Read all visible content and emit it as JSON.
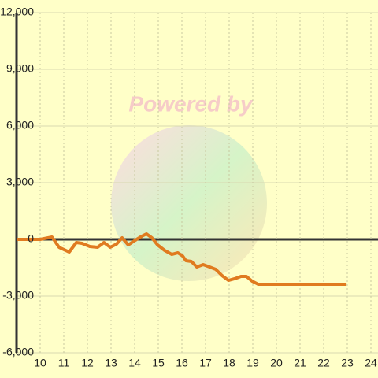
{
  "chart_data": {
    "type": "line",
    "watermark": "Powered by",
    "x": [
      9,
      10,
      10.5,
      10.8,
      11.23,
      11.53,
      11.77,
      12.1,
      12.43,
      12.7,
      12.97,
      13.23,
      13.47,
      13.73,
      14.03,
      14.3,
      14.5,
      14.73,
      14.97,
      15.27,
      15.57,
      15.83,
      16.03,
      16.17,
      16.4,
      16.63,
      16.9,
      17.17,
      17.43,
      17.7,
      17.97,
      18.23,
      18.5,
      18.73,
      18.97,
      19.23,
      22.97
    ],
    "series": [
      {
        "color": "#e07b20",
        "values": [
          0,
          0,
          125,
          -417,
          -667,
          -167,
          -208,
          -375,
          -417,
          -167,
          -417,
          -250,
          83,
          -292,
          -42,
          167,
          292,
          83,
          -292,
          -583,
          -792,
          -708,
          -875,
          -1125,
          -1167,
          -1458,
          -1333,
          -1458,
          -1583,
          -1917,
          -2167,
          -2083,
          -1958,
          -1958,
          -2208,
          -2375,
          -2375
        ]
      }
    ],
    "xlim": [
      9,
      24.3
    ],
    "xticks": [
      10,
      11,
      12,
      13,
      14,
      15,
      16,
      17,
      18,
      19,
      20,
      21,
      22,
      23,
      24
    ],
    "ylim": [
      -6000,
      12000
    ],
    "yticks": [
      {
        "value": -6000,
        "label": "-6,000"
      },
      {
        "value": -3000,
        "label": "-3,000"
      },
      0,
      {
        "value": 3000,
        "label": "3,000"
      },
      {
        "value": 6000,
        "label": "6,000"
      },
      {
        "value": 9000,
        "label": "9,000"
      },
      {
        "value": 12000,
        "label": "12,000"
      }
    ],
    "grid": true
  }
}
